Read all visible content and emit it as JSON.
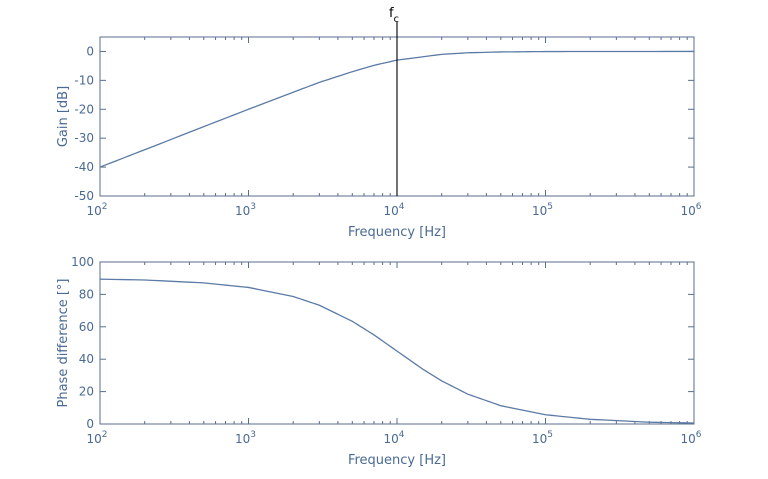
{
  "chart_data": [
    {
      "type": "line",
      "xlabel": "Frequency [Hz]",
      "ylabel": "Gain [dB]",
      "xscale": "log",
      "xlim": [
        100,
        1000000
      ],
      "ylim": [
        -50,
        5
      ],
      "xticks": [
        100,
        1000,
        10000,
        100000,
        1000000
      ],
      "xtick_labels": [
        {
          "base": "10",
          "exp": "2"
        },
        {
          "base": "10",
          "exp": "3"
        },
        {
          "base": "10",
          "exp": "4"
        },
        {
          "base": "10",
          "exp": "5"
        },
        {
          "base": "10",
          "exp": "6"
        }
      ],
      "yticks": [
        0,
        -10,
        -20,
        -30,
        -40,
        -50
      ],
      "ytick_labels": [
        "0",
        "-10",
        "-20",
        "-30",
        "-40",
        "-50"
      ],
      "grid": false,
      "annotation": {
        "label_base": "f",
        "label_sub": "c",
        "x": 10000
      },
      "series": [
        {
          "x": [
            100,
            200,
            500,
            1000,
            2000,
            3000,
            5000,
            7000,
            10000,
            20000,
            30000,
            50000,
            100000,
            200000,
            1000000
          ],
          "values": [
            -40.0,
            -34.0,
            -26.0,
            -20.0,
            -14.1,
            -10.7,
            -7.0,
            -4.8,
            -3.0,
            -1.0,
            -0.46,
            -0.17,
            -0.04,
            -0.01,
            0.0
          ]
        }
      ]
    },
    {
      "type": "line",
      "xlabel": "Frequency [Hz]",
      "ylabel": "Phase difference [°]",
      "xscale": "log",
      "xlim": [
        100,
        1000000
      ],
      "ylim": [
        0,
        100
      ],
      "xticks": [
        100,
        1000,
        10000,
        100000,
        1000000
      ],
      "xtick_labels": [
        {
          "base": "10",
          "exp": "2"
        },
        {
          "base": "10",
          "exp": "3"
        },
        {
          "base": "10",
          "exp": "4"
        },
        {
          "base": "10",
          "exp": "5"
        },
        {
          "base": "10",
          "exp": "6"
        }
      ],
      "yticks": [
        0,
        20,
        40,
        60,
        80,
        100
      ],
      "ytick_labels": [
        "0",
        "20",
        "40",
        "60",
        "80",
        "100"
      ],
      "grid": false,
      "series": [
        {
          "x": [
            100,
            200,
            500,
            1000,
            2000,
            3000,
            5000,
            7000,
            10000,
            15000,
            20000,
            30000,
            50000,
            100000,
            200000,
            500000,
            1000000
          ],
          "values": [
            89.4,
            88.9,
            87.1,
            84.3,
            78.7,
            73.3,
            63.4,
            55.0,
            45.0,
            33.7,
            26.6,
            18.4,
            11.3,
            5.7,
            2.9,
            1.1,
            0.6
          ]
        }
      ]
    }
  ]
}
